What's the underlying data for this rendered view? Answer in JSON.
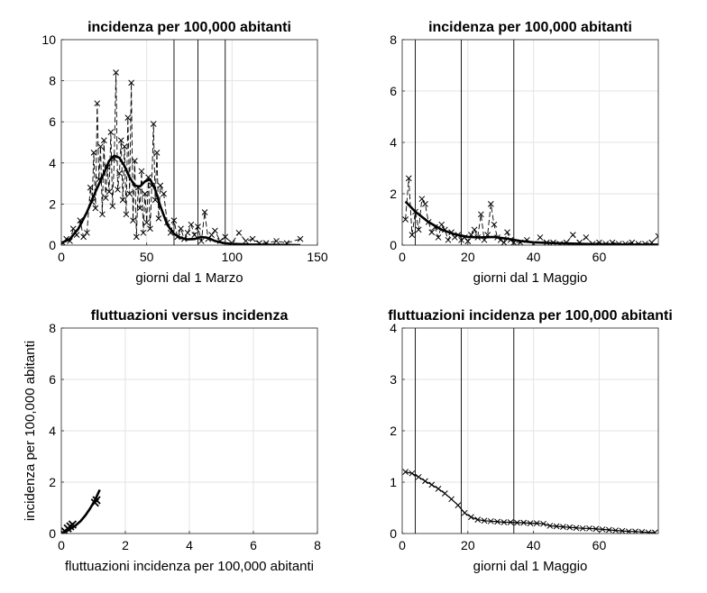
{
  "chart_data": [
    {
      "type": "line",
      "title": "incidenza per 100,000 abitanti",
      "xlabel": "giorni dal 1 Marzo",
      "ylabel": "",
      "xlim": [
        0,
        150
      ],
      "ylim": [
        0,
        10
      ],
      "xticks": [
        "0",
        "50",
        "100",
        "150"
      ],
      "yticks": [
        "0",
        "2",
        "4",
        "6",
        "8",
        "10"
      ],
      "grid": true,
      "vlines": [
        66,
        80,
        96
      ],
      "series": [
        {
          "style": "dashed-x",
          "x": [
            1,
            3,
            5,
            7,
            9,
            11,
            13,
            15,
            17,
            18,
            19,
            20,
            21,
            22,
            23,
            24,
            25,
            26,
            27,
            28,
            29,
            30,
            31,
            32,
            33,
            34,
            35,
            36,
            37,
            38,
            39,
            40,
            41,
            42,
            43,
            44,
            45,
            46,
            47,
            48,
            49,
            50,
            51,
            52,
            53,
            54,
            55,
            56,
            57,
            58,
            60,
            62,
            64,
            66,
            68,
            70,
            72,
            74,
            76,
            78,
            80,
            82,
            84,
            86,
            88,
            90,
            93,
            96,
            100,
            104,
            108,
            112,
            116,
            120,
            126,
            132,
            140
          ],
          "y": [
            0.1,
            0.3,
            0.2,
            0.8,
            0.5,
            1.2,
            0.4,
            0.6,
            2.8,
            2.1,
            4.5,
            1.8,
            6.9,
            3.2,
            4.8,
            1.5,
            5.1,
            2.3,
            3.8,
            2.6,
            5.5,
            1.9,
            4.2,
            8.4,
            2.7,
            3.5,
            5.1,
            2.2,
            4.8,
            1.5,
            6.2,
            2.5,
            7.9,
            1.2,
            4.1,
            0.4,
            2.8,
            1.8,
            3.6,
            0.6,
            2.5,
            1.1,
            3.3,
            0.8,
            2.9,
            5.9,
            2.2,
            4.5,
            1.3,
            2.9,
            2.5,
            1.1,
            0.6,
            1.2,
            0.4,
            0.8,
            0.3,
            0.6,
            1.0,
            0.5,
            0.9,
            0.2,
            1.6,
            0.3,
            0.5,
            0.7,
            0.2,
            0.4,
            0.1,
            0.6,
            0.2,
            0.3,
            0.1,
            0.1,
            0.2,
            0.1,
            0.3
          ]
        },
        {
          "style": "solid-thick",
          "x": [
            0,
            5,
            10,
            15,
            20,
            25,
            28,
            31,
            34,
            37,
            40,
            43,
            46,
            49,
            52,
            55,
            58,
            62,
            66,
            70,
            74,
            78,
            82,
            86,
            90,
            95,
            100,
            110,
            120,
            130,
            140
          ],
          "y": [
            0.1,
            0.3,
            0.8,
            1.6,
            2.6,
            3.5,
            4.1,
            4.35,
            4.25,
            3.85,
            3.3,
            2.9,
            2.85,
            3.1,
            3.2,
            2.7,
            1.9,
            1.0,
            0.55,
            0.35,
            0.28,
            0.3,
            0.4,
            0.35,
            0.2,
            0.1,
            0.06,
            0.03,
            0.02,
            0.01,
            0.0
          ]
        }
      ]
    },
    {
      "type": "line",
      "title": "incidenza per 100,000 abitanti",
      "xlabel": "giorni dal 1 Maggio",
      "ylabel": "",
      "xlim": [
        0,
        78
      ],
      "ylim": [
        0,
        8
      ],
      "xticks": [
        "0",
        "20",
        "40",
        "60"
      ],
      "yticks": [
        "0",
        "2",
        "4",
        "6",
        "8"
      ],
      "grid": true,
      "vlines": [
        4,
        18,
        34
      ],
      "series": [
        {
          "style": "dashed-x",
          "x": [
            1,
            2,
            3,
            4,
            5,
            6,
            7,
            8,
            9,
            10,
            11,
            12,
            13,
            14,
            15,
            16,
            17,
            18,
            19,
            20,
            21,
            22,
            23,
            24,
            25,
            26,
            27,
            28,
            29,
            30,
            31,
            32,
            33,
            34,
            36,
            38,
            40,
            42,
            44,
            46,
            48,
            50,
            52,
            54,
            56,
            58,
            60,
            62,
            64,
            66,
            68,
            70,
            72,
            74,
            76,
            78
          ],
          "y": [
            1.0,
            2.6,
            0.4,
            1.3,
            0.6,
            1.8,
            1.6,
            0.9,
            0.5,
            0.7,
            0.3,
            0.8,
            0.6,
            0.2,
            0.5,
            0.3,
            0.4,
            0.2,
            0.3,
            0.15,
            0.4,
            0.6,
            0.3,
            1.2,
            0.2,
            0.4,
            1.6,
            0.8,
            0.3,
            0.2,
            0.1,
            0.5,
            0.2,
            0.1,
            0.1,
            0.2,
            0.05,
            0.3,
            0.1,
            0.1,
            0.05,
            0.1,
            0.4,
            0.1,
            0.3,
            0.05,
            0.1,
            0.05,
            0.1,
            0.05,
            0.05,
            0.1,
            0.05,
            0.05,
            0.1,
            0.35
          ]
        },
        {
          "style": "solid-thick",
          "x": [
            1,
            4,
            8,
            12,
            16,
            20,
            24,
            28,
            32,
            36,
            40,
            46,
            52,
            58,
            64,
            70,
            78
          ],
          "y": [
            1.7,
            1.3,
            0.9,
            0.6,
            0.42,
            0.32,
            0.3,
            0.32,
            0.25,
            0.16,
            0.11,
            0.08,
            0.06,
            0.04,
            0.03,
            0.02,
            0.02
          ]
        }
      ]
    },
    {
      "type": "line",
      "title": "fluttuazioni versus incidenza",
      "xlabel": "fluttuazioni incidenza per 100,000 abitanti",
      "ylabel": "incidenza per 100,000 abitanti",
      "xlim": [
        0,
        8
      ],
      "ylim": [
        0,
        8
      ],
      "xticks": [
        "0",
        "2",
        "4",
        "6",
        "8"
      ],
      "yticks": [
        "0",
        "2",
        "4",
        "6",
        "8"
      ],
      "grid": true,
      "vlines": [],
      "series": [
        {
          "style": "solid-thick",
          "x": [
            0.02,
            0.1,
            0.2,
            0.3,
            0.45,
            0.6,
            0.75,
            0.9,
            1.05,
            1.2
          ],
          "y": [
            0.02,
            0.06,
            0.12,
            0.2,
            0.32,
            0.48,
            0.7,
            0.98,
            1.3,
            1.7
          ]
        },
        {
          "style": "x-only",
          "x": [
            0.05,
            0.12,
            0.2,
            0.28,
            0.35,
            1.05,
            1.1
          ],
          "y": [
            0.03,
            0.08,
            0.2,
            0.28,
            0.35,
            1.2,
            1.3
          ]
        }
      ]
    },
    {
      "type": "line",
      "title": "fluttuazioni incidenza per 100,000 abitanti",
      "xlabel": "giorni dal 1 Maggio",
      "ylabel": "",
      "xlim": [
        0,
        78
      ],
      "ylim": [
        0,
        4
      ],
      "xticks": [
        "0",
        "20",
        "40",
        "60"
      ],
      "yticks": [
        "0",
        "1",
        "2",
        "3",
        "4"
      ],
      "grid": true,
      "vlines": [
        4,
        18,
        34
      ],
      "series": [
        {
          "style": "solid-x",
          "x": [
            1,
            3,
            5,
            7,
            9,
            11,
            13,
            15,
            17,
            19,
            21,
            23,
            25,
            27,
            29,
            31,
            33,
            35,
            37,
            39,
            41,
            43,
            45,
            47,
            49,
            51,
            53,
            55,
            57,
            59,
            61,
            63,
            65,
            67,
            69,
            71,
            73,
            75,
            77
          ],
          "y": [
            1.2,
            1.17,
            1.1,
            1.02,
            0.95,
            0.87,
            0.78,
            0.67,
            0.55,
            0.4,
            0.32,
            0.27,
            0.25,
            0.24,
            0.23,
            0.22,
            0.22,
            0.21,
            0.21,
            0.2,
            0.2,
            0.19,
            0.15,
            0.14,
            0.13,
            0.12,
            0.11,
            0.1,
            0.1,
            0.09,
            0.08,
            0.07,
            0.06,
            0.05,
            0.04,
            0.04,
            0.03,
            0.02,
            0.02
          ]
        }
      ]
    }
  ]
}
